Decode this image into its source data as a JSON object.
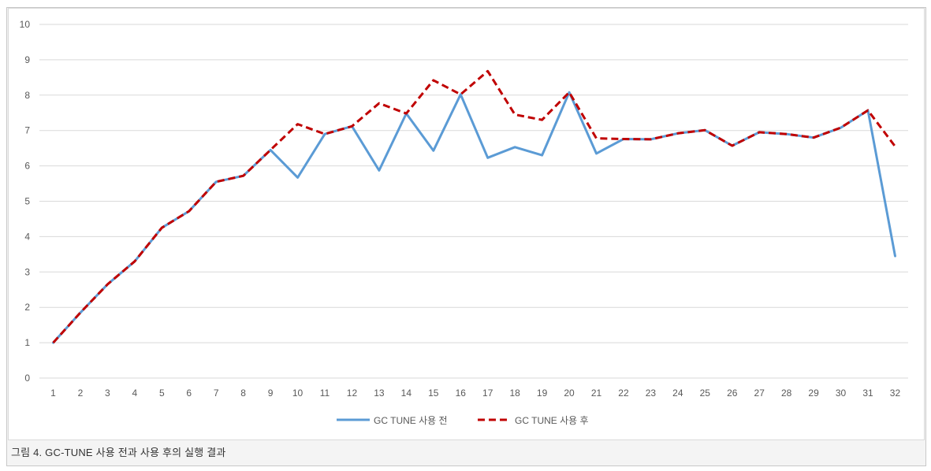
{
  "caption": "그림 4. GC-TUNE 사용 전과 사용 후의 실행 결과",
  "colors": {
    "series_before": "#5b9bd5",
    "series_after": "#c00000",
    "gridline": "#d9d9d9",
    "tick_text": "#595959"
  },
  "chart_data": {
    "type": "line",
    "title": "",
    "xlabel": "",
    "ylabel": "",
    "grid": true,
    "legend_position": "bottom",
    "ylim": [
      0,
      10
    ],
    "yticks": [
      0,
      1,
      2,
      3,
      4,
      5,
      6,
      7,
      8,
      9,
      10
    ],
    "categories": [
      "1",
      "2",
      "3",
      "4",
      "5",
      "6",
      "7",
      "8",
      "9",
      "10",
      "11",
      "12",
      "13",
      "14",
      "15",
      "16",
      "17",
      "18",
      "19",
      "20",
      "21",
      "22",
      "23",
      "24",
      "25",
      "26",
      "27",
      "28",
      "29",
      "30",
      "31",
      "32"
    ],
    "series": [
      {
        "name": "GC TUNE 사용 전",
        "line_style": "solid",
        "values": [
          1.0,
          1.85,
          2.65,
          3.3,
          4.25,
          4.72,
          5.55,
          5.72,
          6.45,
          5.67,
          6.9,
          7.12,
          5.87,
          7.48,
          6.43,
          8.02,
          6.23,
          6.53,
          6.3,
          8.08,
          6.35,
          6.76,
          6.75,
          6.92,
          7.01,
          6.57,
          6.95,
          6.9,
          6.8,
          7.08,
          7.57,
          3.45
        ]
      },
      {
        "name": "GC TUNE 사용 후",
        "line_style": "dashed",
        "values": [
          1.0,
          1.85,
          2.65,
          3.3,
          4.25,
          4.72,
          5.55,
          5.72,
          6.45,
          7.18,
          6.9,
          7.12,
          7.77,
          7.48,
          8.42,
          8.02,
          8.68,
          7.45,
          7.3,
          8.08,
          6.78,
          6.76,
          6.75,
          6.92,
          7.01,
          6.57,
          6.95,
          6.9,
          6.8,
          7.08,
          7.57,
          6.55
        ]
      }
    ]
  }
}
